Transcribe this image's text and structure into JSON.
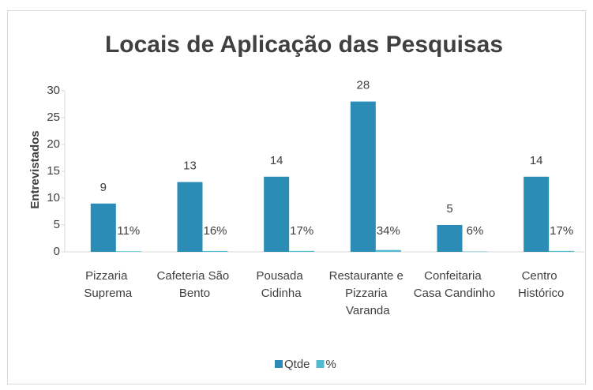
{
  "chart_data": {
    "type": "bar",
    "title": "Locais de Aplicação das Pesquisas",
    "y_label": "Entrevistados",
    "categories": [
      "Pizzaria Suprema",
      "Cafeteria São Bento",
      "Pousada Cidinha",
      "Restaurante e Pizzaria Varanda",
      "Confeitaria Casa Candinho",
      "Centro Histórico"
    ],
    "series": [
      {
        "name": "Qtde",
        "color": "#2b8db6",
        "values": [
          9,
          13,
          14,
          28,
          5,
          14
        ]
      },
      {
        "name": "%",
        "color": "#4fbad0",
        "values": [
          0.11,
          0.16,
          0.17,
          0.34,
          0.06,
          0.17
        ],
        "value_labels": [
          "11%",
          "16%",
          "17%",
          "34%",
          "6%",
          "17%"
        ]
      }
    ],
    "ylim": [
      0,
      30
    ],
    "yticks": [
      0,
      5,
      10,
      15,
      20,
      25,
      30
    ],
    "legend": "bottom"
  }
}
